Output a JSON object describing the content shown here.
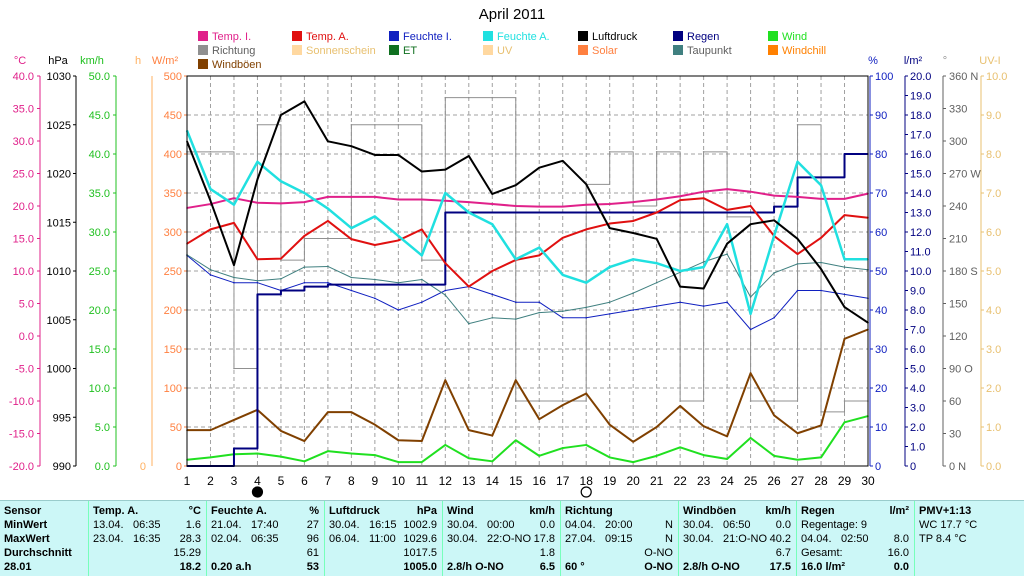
{
  "title": "April 2011",
  "legend": [
    {
      "label": "Temp. I.",
      "color": "#e0208a"
    },
    {
      "label": "Temp. A.",
      "color": "#e01010"
    },
    {
      "label": "Feuchte I.",
      "color": "#1020c0"
    },
    {
      "label": "Feuchte A.",
      "color": "#20e0e0"
    },
    {
      "label": "Luftdruck",
      "color": "#000000"
    },
    {
      "label": "Regen",
      "color": "#000080"
    },
    {
      "label": "Wind",
      "color": "#20e020"
    },
    {
      "label": "Richtung",
      "color": "#909090"
    },
    {
      "label": "Sonnenschein",
      "color": "#ffd8a0"
    },
    {
      "label": "ET",
      "color": "#107020"
    },
    {
      "label": "UV",
      "color": "#ffd8a0"
    },
    {
      "label": "Solar",
      "color": "#ff8040"
    },
    {
      "label": "Taupunkt",
      "color": "#408080"
    },
    {
      "label": "Windchill",
      "color": "#ff8000"
    },
    {
      "label": "Windböen",
      "color": "#804000"
    }
  ],
  "axis_units": {
    "temp": "°C",
    "hpa": "hPa",
    "kmh": "km/h",
    "h": "h",
    "wm2": "W/m²",
    "pct": "%",
    "lm2": "l/m²",
    "deg": "°",
    "uvi": "UV-I"
  },
  "axes": {
    "temp": [
      "40.0",
      "35.0",
      "30.0",
      "25.0",
      "20.0",
      "15.0",
      "10.0",
      "5.0",
      "0.0",
      "-5.0",
      "-10.0",
      "-15.0",
      "-20.0"
    ],
    "hpa": [
      "1030",
      "1025",
      "1020",
      "1015",
      "1010",
      "1005",
      "1000",
      "995",
      "990"
    ],
    "kmh": [
      "50.0",
      "45.0",
      "40.0",
      "35.0",
      "30.0",
      "25.0",
      "20.0",
      "15.0",
      "10.0",
      "5.0",
      "0.0"
    ],
    "h0": "0",
    "wm2": [
      "500",
      "450",
      "400",
      "350",
      "300",
      "250",
      "200",
      "150",
      "100",
      "50",
      "0"
    ],
    "pct": [
      "100",
      "90",
      "80",
      "70",
      "60",
      "50",
      "40",
      "30",
      "20",
      "10",
      "0"
    ],
    "lm2": [
      "20.0",
      "19.0",
      "18.0",
      "17.0",
      "16.0",
      "15.0",
      "14.0",
      "13.0",
      "12.0",
      "11.0",
      "10.0",
      "9.0",
      "8.0",
      "7.0",
      "6.0",
      "5.0",
      "4.0",
      "3.0",
      "2.0",
      "1.0",
      "0"
    ],
    "deg": [
      "360 N",
      "330",
      "300",
      "270 W",
      "240",
      "210",
      "180 S",
      "150",
      "120",
      "90 O",
      "60",
      "30",
      "0 N"
    ],
    "uvi": [
      "10.0",
      "9.0",
      "8.0",
      "7.0",
      "6.0",
      "5.0",
      "4.0",
      "3.0",
      "2.0",
      "1.0",
      "0.0"
    ]
  },
  "chart_data": {
    "type": "line",
    "title": "April 2011",
    "x": [
      1,
      2,
      3,
      4,
      5,
      6,
      7,
      8,
      9,
      10,
      11,
      12,
      13,
      14,
      15,
      16,
      17,
      18,
      19,
      20,
      21,
      22,
      23,
      24,
      25,
      26,
      27,
      28,
      29,
      30
    ],
    "xlim": [
      1,
      30
    ],
    "moon_symbols": [
      {
        "day": 4,
        "phase": "new"
      },
      {
        "day": 18,
        "phase": "full"
      }
    ],
    "series": [
      {
        "name": "Temp. I.",
        "unit": "°C",
        "ylim": [
          -20,
          40
        ],
        "values": [
          19.7,
          20.3,
          21.2,
          20.5,
          20.4,
          20.6,
          21.4,
          21.4,
          21.4,
          21.0,
          21.0,
          20.8,
          20.6,
          20.3,
          20.0,
          19.9,
          19.9,
          20.2,
          20.3,
          20.6,
          21.0,
          21.5,
          22.2,
          22.6,
          22.2,
          21.6,
          21.4,
          21.1,
          21.1,
          21.9
        ]
      },
      {
        "name": "Temp. A.",
        "unit": "°C",
        "ylim": [
          -20,
          40
        ],
        "values": [
          14.2,
          16.4,
          17.4,
          11.8,
          11.9,
          15.4,
          17.7,
          14.9,
          14.0,
          14.7,
          16.4,
          11.2,
          7.6,
          10.0,
          11.7,
          12.4,
          15.1,
          16.4,
          17.3,
          17.7,
          19.0,
          20.9,
          21.2,
          19.4,
          20.0,
          15.4,
          12.6,
          15.1,
          18.6,
          18.2
        ]
      },
      {
        "name": "Feuchte I.",
        "unit": "%",
        "ylim": [
          0,
          100
        ],
        "values": [
          54,
          49,
          47,
          47,
          45,
          47,
          47,
          45,
          43,
          40,
          42,
          45,
          46,
          44,
          42,
          42,
          38,
          38,
          39,
          40,
          41,
          42,
          41,
          42,
          35,
          38,
          45,
          45,
          44,
          43
        ]
      },
      {
        "name": "Taupunkt",
        "unit": "°C",
        "ylim": [
          -20,
          40
        ],
        "values": [
          12.5,
          10.2,
          9.0,
          8.5,
          8.8,
          10.6,
          10.7,
          9.0,
          8.7,
          8.2,
          8.7,
          6.3,
          1.9,
          2.8,
          2.6,
          3.6,
          3.8,
          4.4,
          5.2,
          6.6,
          8.2,
          9.8,
          11.4,
          12.6,
          6.0,
          9.7,
          11.1,
          11.3,
          10.6,
          10.2
        ]
      },
      {
        "name": "Feuchte A.",
        "unit": "%",
        "ylim": [
          0,
          100
        ],
        "values": [
          86,
          71,
          67,
          78,
          73,
          70,
          66,
          61,
          64,
          59,
          54,
          70,
          65,
          62,
          53,
          56,
          49,
          47,
          51,
          53,
          52,
          50,
          51,
          62,
          39,
          59,
          78,
          72,
          53,
          53
        ]
      },
      {
        "name": "Luftdruck",
        "unit": "hPa",
        "ylim": [
          990,
          1030
        ],
        "values": [
          1023.3,
          1017.2,
          1010.6,
          1019.4,
          1026.0,
          1027.4,
          1023.3,
          1022.8,
          1021.9,
          1021.9,
          1020.2,
          1020.4,
          1021.8,
          1017.9,
          1018.8,
          1020.6,
          1021.3,
          1018.9,
          1014.4,
          1013.9,
          1013.3,
          1008.4,
          1008.2,
          1012.8,
          1014.8,
          1015.2,
          1013.3,
          1010.2,
          1006.3,
          1004.7
        ]
      },
      {
        "name": "Regen",
        "unit": "l/m²",
        "ylim": [
          0,
          20
        ],
        "values": [
          0.0,
          0.0,
          0.9,
          8.8,
          9.0,
          9.2,
          9.3,
          9.3,
          9.3,
          9.3,
          9.3,
          13.0,
          13.0,
          13.0,
          13.0,
          13.0,
          13.0,
          13.0,
          13.0,
          13.0,
          13.0,
          13.0,
          13.0,
          13.0,
          13.0,
          13.3,
          14.8,
          14.8,
          16.0,
          16.0
        ]
      },
      {
        "name": "Wind",
        "unit": "km/h",
        "ylim": [
          0,
          50
        ],
        "values": [
          0.8,
          1.1,
          1.5,
          1.6,
          1.2,
          0.6,
          1.9,
          1.6,
          1.4,
          0.5,
          0.5,
          2.7,
          1.0,
          0.6,
          3.3,
          1.3,
          2.3,
          2.7,
          1.1,
          0.5,
          1.3,
          2.4,
          1.4,
          0.9,
          3.6,
          1.3,
          0.8,
          1.1,
          5.6,
          6.4
        ]
      },
      {
        "name": "Windböen",
        "unit": "km/h",
        "ylim": [
          0,
          50
        ],
        "values": [
          4.6,
          4.6,
          5.9,
          7.2,
          4.5,
          3.2,
          6.9,
          6.9,
          5.3,
          3.3,
          3.2,
          11.0,
          4.6,
          3.9,
          11.0,
          6.0,
          7.8,
          9.3,
          5.3,
          3.1,
          5.0,
          7.7,
          5.1,
          3.8,
          11.9,
          6.5,
          4.2,
          5.2,
          16.3,
          17.5
        ]
      },
      {
        "name": "Richtung",
        "unit": "°",
        "ylim": [
          0,
          360
        ],
        "values": [
          290,
          290,
          90,
          315,
          190,
          210,
          210,
          315,
          315,
          315,
          190,
          340,
          340,
          340,
          60,
          60,
          60,
          260,
          290,
          240,
          290,
          60,
          290,
          230,
          60,
          60,
          315,
          50,
          60,
          60
        ]
      }
    ]
  },
  "stats": {
    "sensor": {
      "h": "Sensor",
      "min": "MinWert",
      "max": "MaxWert",
      "avg": "Durchschnitt",
      "cut": "28.01"
    },
    "temp": {
      "h": "Temp. A.",
      "u": "°C",
      "min_d": "13.04.",
      "min_t": "06:35",
      "min_v": "1.6",
      "max_d": "23.04.",
      "max_t": "16:35",
      "max_v": "28.3",
      "avg": "15.29",
      "cut": "18.2"
    },
    "hum": {
      "h": "Feuchte A.",
      "u": "%",
      "min_d": "21.04.",
      "min_t": "17:40",
      "min_v": "27",
      "max_d": "02.04.",
      "max_t": "06:35",
      "max_v": "96",
      "avg": "61",
      "cut_a": "0.20 a.h",
      "cut": "53"
    },
    "press": {
      "h": "Luftdruck",
      "u": "hPa",
      "min_d": "30.04.",
      "min_t": "16:15",
      "min_v": "1002.9",
      "max_d": "06.04.",
      "max_t": "11:00",
      "max_v": "1029.6",
      "avg": "1017.5",
      "cut": "1005.0"
    },
    "wind": {
      "h": "Wind",
      "u": "km/h",
      "min_d": "30.04.",
      "min_t": "00:00",
      "min_v": "0.0",
      "max_d": "30.04.",
      "max_t": "22:O-NO",
      "max_v": "17.8",
      "avg": "1.8",
      "cut_a": "2.8/h O-NO",
      "cut": "6.5"
    },
    "dir": {
      "h": "Richtung",
      "min_d": "04.04.",
      "min_t": "20:00",
      "min_v": "N",
      "max_d": "27.04.",
      "max_t": "09:15",
      "max_v": "N",
      "avg": "O-NO",
      "cut_a": "60 °",
      "cut": "O-NO"
    },
    "gust": {
      "h": "Windböen",
      "u": "km/h",
      "min_d": "30.04.",
      "min_t": "06:50",
      "min_v": "0.0",
      "max_d": "30.04.",
      "max_t": "21:O-NO",
      "max_v": "40.2",
      "avg": "6.7",
      "cut_a": "2.8/h O-NO",
      "cut": "17.5"
    },
    "rain": {
      "h": "Regen",
      "u": "l/m²",
      "days_l": "Regentage: 9",
      "l2a": "04.04.",
      "l2b": "02:50",
      "l2v": "8.0",
      "tot_l": "Gesamt:",
      "tot_v": "16.0",
      "cut_a": "16.0 l/m²",
      "cut": "0.0"
    },
    "pmv": {
      "h": "PMV+1:13",
      "wc": "WC 17.7 °C",
      "tp": "TP 8.4 °C"
    }
  }
}
